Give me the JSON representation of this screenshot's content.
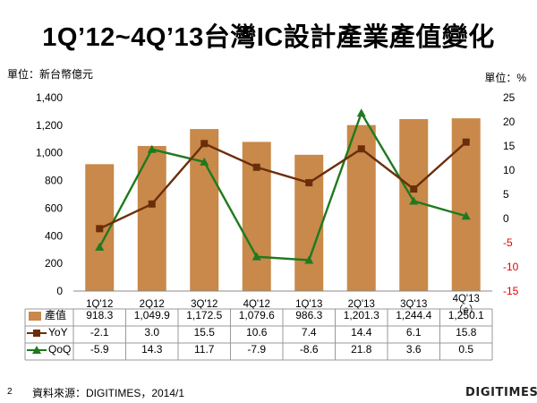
{
  "page": {
    "title": "1Q’12~4Q’13台灣IC設計產業產值變化",
    "unit_left": "單位：新台幣億元",
    "unit_right": "單位：%",
    "source": "資料來源：DIGITIMES，2014/1",
    "page_number": "2",
    "logo": "DIGITIMES"
  },
  "chart_data": {
    "type": "bar",
    "categories": [
      "1Q'12",
      "2Q12",
      "3Q'12",
      "4Q'12",
      "1Q'13",
      "2Q'13",
      "3Q'13",
      "4Q'13\n（e）"
    ],
    "y_left": {
      "range": [
        0,
        1400
      ],
      "ticks": [
        0,
        200,
        400,
        600,
        800,
        1000,
        1200,
        1400
      ],
      "tick_labels": [
        "0",
        "200",
        "400",
        "600",
        "800",
        "1,000",
        "1,200",
        "1,400"
      ]
    },
    "y_right": {
      "range": [
        -15,
        25
      ],
      "ticks": [
        -15,
        -10,
        -5,
        0,
        5,
        10,
        15,
        20,
        25
      ],
      "tick_labels": [
        "-15",
        "-10",
        "-5",
        "0",
        "5",
        "10",
        "15",
        "20",
        "25"
      ]
    },
    "series": [
      {
        "name": "產值",
        "type": "bar",
        "axis": "left",
        "color": "#C8894A",
        "values": [
          918.3,
          1049.9,
          1172.5,
          1079.6,
          986.3,
          1201.3,
          1244.4,
          1250.1
        ],
        "labels": [
          "918.3",
          "1,049.9",
          "1,172.5",
          "1,079.6",
          "986.3",
          "1,201.3",
          "1,244.4",
          "1,250.1"
        ]
      },
      {
        "name": "YoY",
        "type": "line",
        "axis": "right",
        "color": "#6B2E0A",
        "marker": "square",
        "values": [
          -2.1,
          3.0,
          15.5,
          10.6,
          7.4,
          14.4,
          6.1,
          15.8
        ],
        "labels": [
          "-2.1",
          "3.0",
          "15.5",
          "10.6",
          "7.4",
          "14.4",
          "6.1",
          "15.8"
        ]
      },
      {
        "name": "QoQ",
        "type": "line",
        "axis": "right",
        "color": "#1E7A1E",
        "marker": "triangle",
        "values": [
          -5.9,
          14.3,
          11.7,
          -7.9,
          -8.6,
          21.8,
          3.6,
          0.5
        ],
        "labels": [
          "-5.9",
          "14.3",
          "11.7",
          "-7.9",
          "-8.6",
          "21.8",
          "3.6",
          "0.5"
        ]
      }
    ],
    "negative_tick_color": "#E00000",
    "legend": "data-table"
  }
}
